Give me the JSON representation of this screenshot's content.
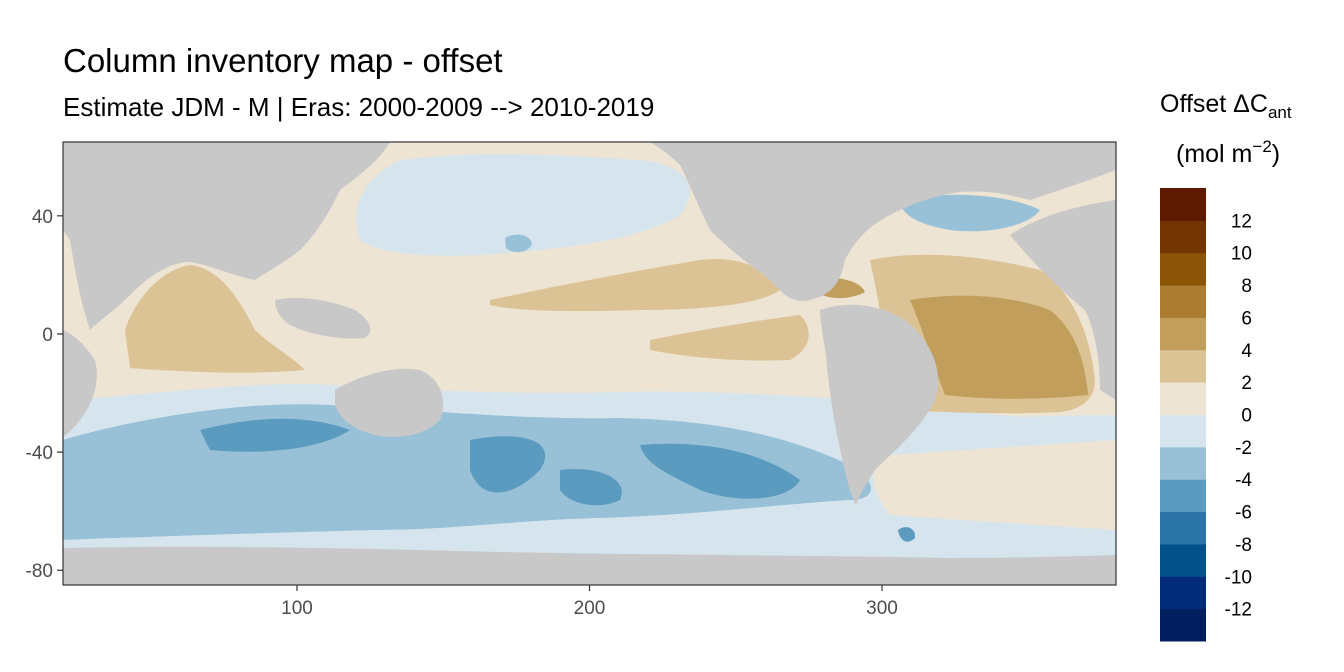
{
  "chart_data": {
    "type": "heatmap",
    "title": "Column inventory map - offset",
    "subtitle": "Estimate JDM - M | Eras: 2000-2009 --> 2010-2019",
    "xlim": [
      20,
      380
    ],
    "ylim": [
      -85,
      65
    ],
    "x_ticks": [
      100,
      200,
      300
    ],
    "y_ticks": [
      40,
      0,
      -40,
      -80
    ],
    "grid": false,
    "land_color": "#c8c8c8",
    "legend": {
      "title_main": "Offset ΔC",
      "title_sub": "ant",
      "units_main": "(mol m",
      "units_sup": "−2",
      "units_close": ")",
      "placement": "right",
      "breaks": [
        -14,
        -12,
        -10,
        -8,
        -6,
        -4,
        -2,
        0,
        2,
        4,
        6,
        8,
        10,
        12,
        14
      ],
      "labels": [
        "12",
        "10",
        "8",
        "6",
        "4",
        "2",
        "0",
        "-2",
        "-4",
        "-6",
        "-8",
        "-10",
        "-12"
      ],
      "colors": [
        "#011f5e",
        "#022c7a",
        "#03528c",
        "#2b74a6",
        "#5a9bbf",
        "#98c1d8",
        "#d6e5ed",
        "#ede4d4",
        "#dcc396",
        "#c19e5c",
        "#ab7d32",
        "#8c5608",
        "#733503",
        "#5e1901"
      ]
    }
  }
}
